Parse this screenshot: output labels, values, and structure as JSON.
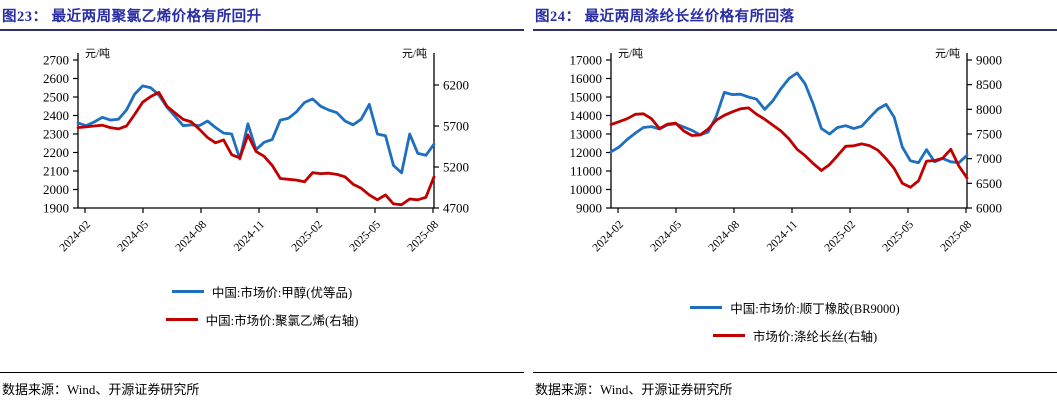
{
  "page": {
    "background": "#ffffff"
  },
  "colors": {
    "blue_line": "#1E6FBF",
    "red_line": "#C00000",
    "title_navy": "#282DA3",
    "axis": "#000000"
  },
  "panels": [
    {
      "title": "图23： 最近两周聚氯乙烯价格有所回升",
      "source": "数据来源：Wind、开源证券研究所",
      "legend": [
        {
          "label": "中国:市场价:甲醇(优等品)",
          "color": "#1E6FBF"
        },
        {
          "label": "中国:市场价:聚氯乙烯(右轴)",
          "color": "#C00000"
        }
      ]
    },
    {
      "title": "图24： 最近两周涤纶长丝价格有所回落",
      "source": "数据来源：Wind、开源证券研究所",
      "legend": [
        {
          "label": "中国:市场价:顺丁橡胶(BR9000)",
          "color": "#1E6FBF"
        },
        {
          "label": "市场价:涤纶长丝(右轴)",
          "color": "#C00000"
        }
      ]
    }
  ],
  "chart_data": [
    {
      "type": "line",
      "title": "图23： 最近两周聚氯乙烯价格有所回升",
      "unit_left": "元/吨",
      "unit_right": "元/吨",
      "x_tick_labels": [
        "2024-02",
        "2024-05",
        "2024-08",
        "2024-11",
        "2025-02",
        "2025-05",
        "2025-08"
      ],
      "left_axis": {
        "min": 1900,
        "max": 2700,
        "ticks": [
          2700,
          2600,
          2500,
          2400,
          2300,
          2200,
          2100,
          2000,
          1900
        ]
      },
      "right_axis": {
        "min": 4700,
        "max": 6505,
        "ticks": [
          6200,
          5700,
          5200,
          4700
        ]
      },
      "grid": false,
      "legend_position": "bottom",
      "series": [
        {
          "name": "中国:市场价:甲醇(优等品)",
          "axis": "left",
          "color": "#1E6FBF",
          "values": [
            2360,
            2345,
            2365,
            2390,
            2375,
            2380,
            2430,
            2515,
            2560,
            2550,
            2510,
            2445,
            2395,
            2345,
            2350,
            2345,
            2370,
            2335,
            2305,
            2300,
            2165,
            2355,
            2215,
            2255,
            2270,
            2375,
            2385,
            2420,
            2470,
            2490,
            2450,
            2430,
            2415,
            2370,
            2350,
            2380,
            2460,
            2300,
            2290,
            2130,
            2090,
            2300,
            2195,
            2185,
            2245
          ]
        },
        {
          "name": "中国:市场价:聚氯乙烯(右轴)",
          "axis": "right",
          "color": "#C00000",
          "values": [
            5680,
            5690,
            5700,
            5710,
            5680,
            5665,
            5700,
            5840,
            5990,
            6060,
            6110,
            5940,
            5860,
            5780,
            5750,
            5660,
            5560,
            5495,
            5530,
            5350,
            5310,
            5590,
            5390,
            5330,
            5220,
            5060,
            5050,
            5040,
            5020,
            5130,
            5120,
            5125,
            5110,
            5080,
            4990,
            4940,
            4860,
            4800,
            4860,
            4750,
            4740,
            4810,
            4800,
            4830,
            5080
          ]
        }
      ]
    },
    {
      "type": "line",
      "title": "图24： 最近两周涤纶长丝价格有所回落",
      "unit_left": "元/吨",
      "unit_right": "元/吨",
      "x_tick_labels": [
        "2024-02",
        "2024-05",
        "2024-08",
        "2024-11",
        "2025-02",
        "2025-05",
        "2025-08"
      ],
      "left_axis": {
        "min": 9000,
        "max": 17000,
        "ticks": [
          17000,
          16000,
          15000,
          14000,
          13000,
          12000,
          11000,
          10000,
          9000
        ]
      },
      "right_axis": {
        "min": 6000,
        "max": 9000,
        "ticks": [
          9000,
          8500,
          8000,
          7500,
          7000,
          6500,
          6000
        ]
      },
      "grid": false,
      "legend_position": "bottom",
      "series": [
        {
          "name": "中国:市场价:顺丁橡胶(BR9000)",
          "axis": "left",
          "color": "#1E6FBF",
          "values": [
            12040,
            12300,
            12700,
            13050,
            13350,
            13400,
            13270,
            13500,
            13550,
            13380,
            13200,
            12950,
            13100,
            13950,
            15250,
            15130,
            15150,
            15000,
            14880,
            14330,
            14790,
            15450,
            16000,
            16300,
            15700,
            14600,
            13300,
            13000,
            13350,
            13450,
            13300,
            13420,
            13900,
            14350,
            14600,
            13900,
            12300,
            11550,
            11450,
            12150,
            11500,
            11680,
            11500,
            11450,
            11850
          ]
        },
        {
          "name": "市场价:涤纶长丝(右轴)",
          "axis": "right",
          "color": "#C00000",
          "values": [
            7690,
            7750,
            7810,
            7900,
            7910,
            7810,
            7610,
            7700,
            7720,
            7560,
            7470,
            7480,
            7600,
            7780,
            7880,
            7950,
            8010,
            8030,
            7900,
            7800,
            7680,
            7560,
            7400,
            7190,
            7060,
            6900,
            6760,
            6880,
            7060,
            7250,
            7260,
            7300,
            7260,
            7170,
            7000,
            6800,
            6500,
            6420,
            6550,
            6950,
            6960,
            7010,
            7190,
            6850,
            6610
          ]
        }
      ]
    }
  ]
}
